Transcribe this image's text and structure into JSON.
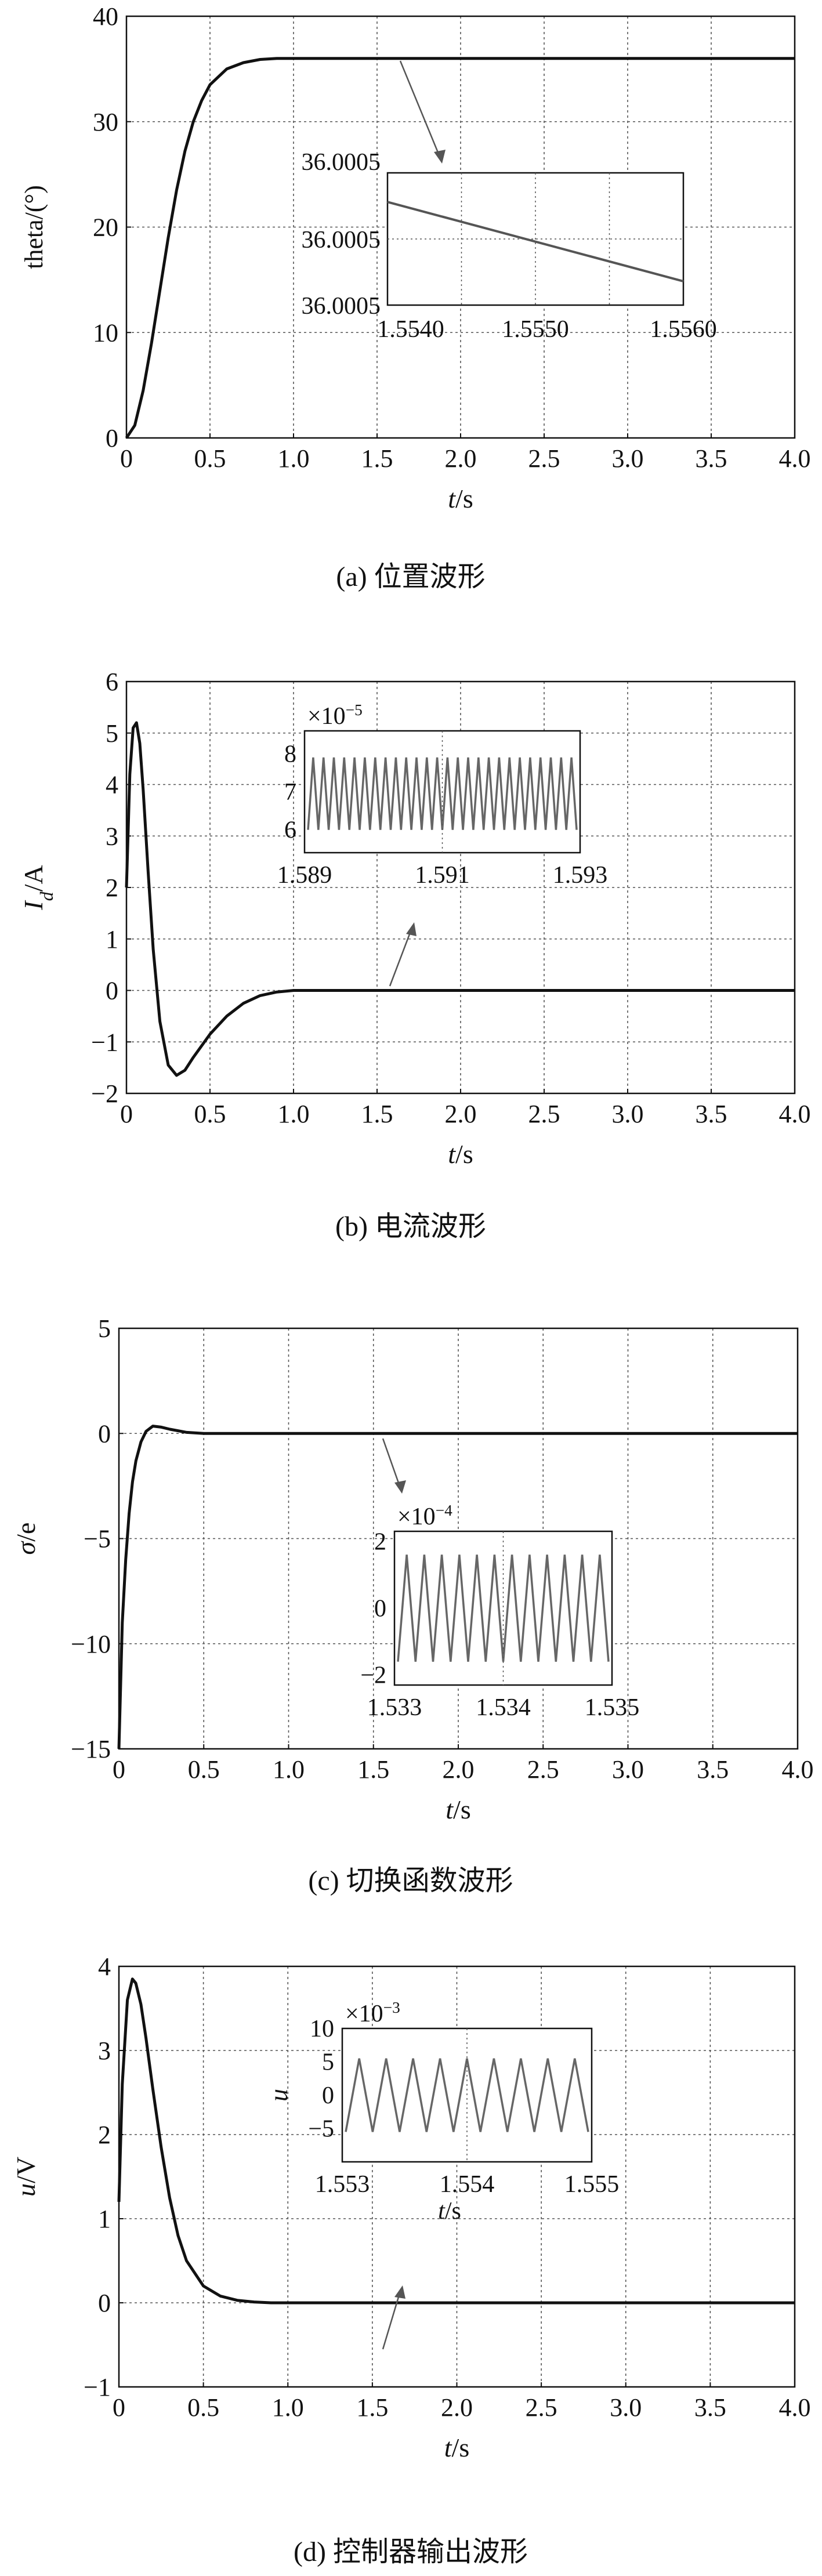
{
  "chart_data": [
    {
      "type": "line",
      "caption": "(a) 位置波形",
      "ylabel": "theta/(°)",
      "xlabel_italic": "t",
      "xlabel_rest": "/s",
      "xlim": [
        0,
        4
      ],
      "ylim": [
        0,
        40
      ],
      "xticks": [
        "0",
        "0.5",
        "1.0",
        "1.5",
        "2.0",
        "2.5",
        "3.0",
        "3.5",
        "4.0"
      ],
      "yticks": [
        "0",
        "10",
        "20",
        "30",
        "40"
      ],
      "grid": true,
      "series": [
        {
          "x": [
            0,
            0.05,
            0.1,
            0.15,
            0.2,
            0.25,
            0.3,
            0.35,
            0.4,
            0.45,
            0.5,
            0.6,
            0.7,
            0.8,
            0.9,
            1.0,
            1.2,
            1.5,
            2.0,
            2.5,
            3.0,
            3.5,
            4.0
          ],
          "y": [
            0,
            1.2,
            4.5,
            9.0,
            14.0,
            19.0,
            23.5,
            27.2,
            30.0,
            32.0,
            33.5,
            35.0,
            35.6,
            35.9,
            36.0,
            36.0,
            36.0,
            36.0,
            36.0,
            36.0,
            36.0,
            36.0,
            36.0
          ]
        }
      ],
      "inset": {
        "xticks": [
          "1.5540",
          "1.5550",
          "1.5560"
        ],
        "yticks": [
          "36.0005",
          "36.0005",
          "36.0005"
        ],
        "description_line": {
          "x": [
            1.5539,
            1.5559
          ],
          "y": [
            0.78,
            0.18
          ]
        }
      }
    },
    {
      "type": "line",
      "caption": "(b) 电流波形",
      "ylabel_italic": "I",
      "ylabel_sub": "d",
      "ylabel_rest": "/A",
      "xlabel_italic": "t",
      "xlabel_rest": "/s",
      "xlim": [
        0,
        4
      ],
      "ylim": [
        -2,
        6
      ],
      "xticks": [
        "0",
        "0.5",
        "1.0",
        "1.5",
        "2.0",
        "2.5",
        "3.0",
        "3.5",
        "4.0"
      ],
      "yticks": [
        "−2",
        "−1",
        "0",
        "1",
        "2",
        "3",
        "4",
        "5",
        "6"
      ],
      "grid": true,
      "series": [
        {
          "x": [
            0,
            0.02,
            0.04,
            0.06,
            0.08,
            0.1,
            0.13,
            0.16,
            0.2,
            0.25,
            0.3,
            0.35,
            0.4,
            0.5,
            0.6,
            0.7,
            0.8,
            0.9,
            1.0,
            1.1,
            1.2,
            1.5,
            2.0,
            2.5,
            3.0,
            3.5,
            4.0
          ],
          "y": [
            2.0,
            4.2,
            5.1,
            5.2,
            4.8,
            3.9,
            2.3,
            0.8,
            -0.6,
            -1.45,
            -1.65,
            -1.55,
            -1.3,
            -0.85,
            -0.5,
            -0.25,
            -0.1,
            -0.03,
            0.0,
            0.0,
            0.0,
            0.0,
            0.0,
            0.0,
            0.0,
            0.0,
            0.0
          ]
        }
      ],
      "inset": {
        "multiplier_base": "×10",
        "multiplier_exp": "−5",
        "xticks": [
          "1.589",
          "1.591",
          "1.593"
        ],
        "yticks": [
          "6",
          "7",
          "8"
        ],
        "ylim": [
          5.4,
          8.6
        ],
        "oscillation": {
          "cycles": 26,
          "low": 6.0,
          "high": 7.9
        }
      }
    },
    {
      "type": "line",
      "caption": "(c) 切换函数波形",
      "ylabel_italic": "σ",
      "ylabel_rest": "/e",
      "xlabel_italic": "t",
      "xlabel_rest": "/s",
      "xlim": [
        0,
        4
      ],
      "ylim": [
        -15,
        5
      ],
      "xticks": [
        "0",
        "0.5",
        "1.0",
        "1.5",
        "2.0",
        "2.5",
        "3.0",
        "3.5",
        "4.0"
      ],
      "yticks": [
        "−15",
        "−10",
        "−5",
        "0",
        "5"
      ],
      "grid": true,
      "series": [
        {
          "x": [
            0,
            0.01,
            0.02,
            0.04,
            0.06,
            0.08,
            0.1,
            0.13,
            0.16,
            0.2,
            0.25,
            0.3,
            0.4,
            0.5,
            0.6,
            0.8,
            1.0,
            1.5,
            2.0,
            2.5,
            3.0,
            3.5,
            4.0
          ],
          "y": [
            -15,
            -12,
            -9,
            -6,
            -3.8,
            -2.3,
            -1.3,
            -0.4,
            0.1,
            0.35,
            0.3,
            0.2,
            0.05,
            0.0,
            0.0,
            0.0,
            0.0,
            0.0,
            0.0,
            0.0,
            0.0,
            0.0,
            0.0
          ]
        }
      ],
      "inset": {
        "multiplier_base": "×10",
        "multiplier_exp": "−4",
        "xticks": [
          "1.533",
          "1.534",
          "1.535"
        ],
        "yticks": [
          "2",
          "0",
          "−2"
        ],
        "ylim": [
          -2.3,
          2.3
        ],
        "oscillation": {
          "cycles": 12,
          "low": -1.6,
          "high": 1.6
        }
      }
    },
    {
      "type": "line",
      "caption": "(d) 控制器输出波形",
      "ylabel_italic": "u",
      "ylabel_rest": "/V",
      "xlabel_italic": "t",
      "xlabel_rest": "/s",
      "xlim": [
        0,
        4
      ],
      "ylim": [
        -1,
        4
      ],
      "xticks": [
        "0",
        "0.5",
        "1.0",
        "1.5",
        "2.0",
        "2.5",
        "3.0",
        "3.5",
        "4.0"
      ],
      "yticks": [
        "−1",
        "0",
        "1",
        "2",
        "3",
        "4"
      ],
      "grid": true,
      "series": [
        {
          "x": [
            0,
            0.02,
            0.05,
            0.08,
            0.1,
            0.13,
            0.16,
            0.2,
            0.25,
            0.3,
            0.35,
            0.4,
            0.5,
            0.6,
            0.7,
            0.8,
            0.9,
            1.0,
            1.2,
            1.5,
            2.0,
            2.5,
            3.0,
            3.5,
            4.0
          ],
          "y": [
            1.2,
            2.6,
            3.6,
            3.85,
            3.8,
            3.55,
            3.15,
            2.55,
            1.85,
            1.25,
            0.8,
            0.5,
            0.2,
            0.08,
            0.03,
            0.01,
            0.0,
            0.0,
            0.0,
            0.0,
            0.0,
            0.0,
            0.0,
            0.0,
            0.0
          ]
        }
      ],
      "inset": {
        "multiplier_base": "×10",
        "multiplier_exp": "−3",
        "ylabel_italic": "u",
        "xlabel_italic": "t",
        "xlabel_rest": "/s",
        "xticks": [
          "1.553",
          "1.554",
          "1.555"
        ],
        "yticks": [
          "10",
          "5",
          "0",
          "−5"
        ],
        "ylim": [
          -10,
          10
        ],
        "oscillation": {
          "cycles": 9,
          "low": -5.5,
          "high": 5.5
        }
      }
    }
  ]
}
